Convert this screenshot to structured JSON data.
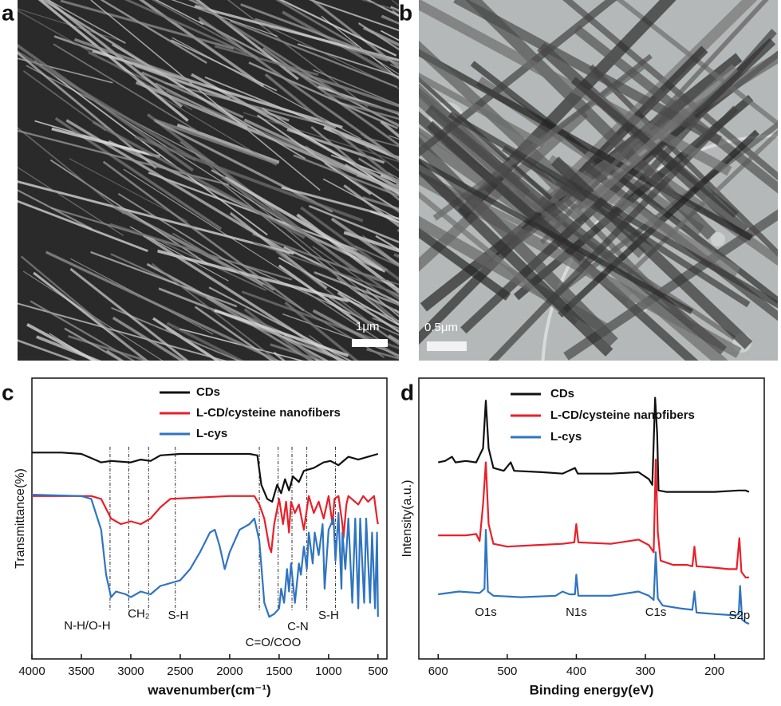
{
  "images": [
    {
      "label": "a",
      "scale_bar": "1μm"
    },
    {
      "label": "b",
      "scale_bar": "0.5μm"
    }
  ],
  "chart_data": [
    {
      "type": "line",
      "panel_label": "c",
      "x_label": "wavenumber(cm⁻¹)",
      "y_label": "Transmittance(%)",
      "xlim": [
        4000,
        410
      ],
      "xticks": [
        4000,
        3500,
        3000,
        2500,
        2000,
        1500,
        1000,
        500
      ],
      "ylim": [
        0,
        100
      ],
      "series": [
        {
          "name": "CDs",
          "color": "#111111",
          "x": [
            4000,
            3700,
            3500,
            3400,
            3300,
            3200,
            3000,
            2900,
            2800,
            2700,
            2500,
            2000,
            1800,
            1720,
            1680,
            1620,
            1570,
            1520,
            1480,
            1440,
            1400,
            1360,
            1300,
            1250,
            1150,
            1050,
            980,
            900,
            800,
            700,
            600,
            500
          ],
          "values": [
            73.5,
            73.5,
            73,
            71.5,
            70,
            70.5,
            70,
            71,
            70.5,
            72.5,
            73,
            73,
            73,
            72.5,
            62,
            57,
            56,
            62,
            59,
            64,
            60,
            65,
            63,
            67,
            68,
            70,
            70.5,
            69,
            72,
            71,
            72,
            73
          ]
        },
        {
          "name": "L-CD/cysteine nanofibers",
          "color": "#e8202a",
          "x": [
            4000,
            3400,
            3300,
            3200,
            3100,
            3000,
            2900,
            2800,
            2700,
            2600,
            2000,
            1750,
            1700,
            1650,
            1600,
            1580,
            1550,
            1500,
            1460,
            1430,
            1400,
            1380,
            1340,
            1300,
            1250,
            1200,
            1150,
            1100,
            1050,
            1000,
            960,
            940,
            900,
            860,
            850,
            820,
            800,
            700,
            650,
            600,
            540,
            510,
            500
          ],
          "values": [
            58,
            58,
            57,
            50,
            48,
            49,
            48,
            50,
            54,
            57,
            58,
            58,
            55,
            50,
            40,
            38,
            48,
            57,
            48,
            56,
            45,
            56,
            52,
            55,
            46,
            58,
            52,
            56,
            50,
            58,
            48,
            57,
            58,
            48,
            43,
            55,
            58,
            55,
            58,
            56,
            58,
            50,
            48
          ]
        },
        {
          "name": "L-cys",
          "color": "#2f74c0",
          "x": [
            4000,
            3500,
            3400,
            3300,
            3250,
            3200,
            3150,
            3050,
            3000,
            2900,
            2800,
            2700,
            2600,
            2500,
            2400,
            2300,
            2200,
            2150,
            2100,
            2050,
            2000,
            1900,
            1800,
            1750,
            1700,
            1650,
            1600,
            1550,
            1500,
            1480,
            1450,
            1420,
            1400,
            1380,
            1340,
            1300,
            1280,
            1250,
            1220,
            1200,
            1160,
            1140,
            1100,
            1060,
            1040,
            1000,
            950,
            930,
            900,
            870,
            860,
            830,
            800,
            760,
            730,
            700,
            680,
            640,
            620,
            580,
            560,
            530,
            510,
            500
          ],
          "values": [
            58.5,
            58,
            57,
            46,
            30,
            22,
            24,
            23,
            22,
            24,
            23,
            26,
            27,
            28,
            32,
            38,
            45,
            46,
            40,
            32,
            38,
            46,
            48,
            50,
            42,
            20,
            15,
            16,
            18,
            25,
            20,
            32,
            24,
            34,
            20,
            34,
            30,
            40,
            32,
            45,
            34,
            45,
            37,
            48,
            25,
            46,
            50,
            35,
            52,
            25,
            45,
            32,
            50,
            20,
            50,
            18,
            50,
            20,
            50,
            20,
            45,
            18,
            45,
            15
          ]
        }
      ],
      "marker_lines": [
        3210,
        3020,
        2820,
        2550,
        1700,
        1510,
        1370,
        1220,
        930
      ],
      "annotations": [
        {
          "text": "N-H/O-H",
          "x": 3440
        },
        {
          "text": "CH₂",
          "x": 2920
        },
        {
          "text": "S-H",
          "x": 2520
        },
        {
          "text": "C=O/COO",
          "x": 1560
        },
        {
          "text": "C-N",
          "x": 1310
        },
        {
          "text": "S-H",
          "x": 1000
        }
      ]
    },
    {
      "type": "line",
      "panel_label": "d",
      "x_label": "Binding energy(eV)",
      "y_label": "Intensity(a.u.)",
      "xlim": [
        628,
        128
      ],
      "xticks": [
        600,
        500,
        400,
        300,
        200
      ],
      "ylim": [
        0,
        100
      ],
      "series": [
        {
          "name": "CDs",
          "color": "#111111",
          "x": [
            600,
            590,
            580,
            575,
            560,
            545,
            535,
            531,
            527,
            520,
            505,
            495,
            490,
            450,
            420,
            402,
            398,
            350,
            310,
            295,
            290,
            286,
            283,
            281,
            270,
            230,
            200,
            165,
            155,
            150
          ],
          "values": [
            70,
            70.5,
            72,
            70,
            70.5,
            70,
            75,
            92,
            75,
            68,
            67,
            70,
            67,
            66.5,
            66,
            68,
            66,
            66,
            66.5,
            64,
            62,
            93,
            80,
            60,
            59.5,
            59.5,
            59.5,
            60,
            60,
            59.5
          ]
        },
        {
          "name": "L-CD/cysteine nanofibers",
          "color": "#e8202a",
          "x": [
            600,
            560,
            545,
            540,
            535,
            531,
            527,
            520,
            500,
            460,
            420,
            403,
            400,
            397,
            350,
            310,
            295,
            288,
            285,
            282,
            278,
            260,
            240,
            232,
            229,
            226,
            200,
            180,
            168,
            164,
            161,
            155,
            150
          ],
          "values": [
            44,
            44,
            44.5,
            42,
            55,
            70,
            48,
            41,
            40,
            40.5,
            41,
            41.5,
            48,
            41.5,
            41,
            42.5,
            40.5,
            38,
            71,
            45,
            35,
            33.5,
            33.5,
            33,
            40,
            33,
            32.5,
            32,
            32,
            43,
            31,
            29,
            29
          ]
        },
        {
          "name": "L-cys",
          "color": "#2f74c0",
          "x": [
            600,
            570,
            540,
            533,
            531,
            528,
            520,
            480,
            430,
            420,
            410,
            402,
            400,
            397,
            350,
            310,
            295,
            288,
            285,
            282,
            275,
            250,
            232,
            229,
            226,
            200,
            170,
            165,
            163,
            160,
            155,
            150
          ],
          "values": [
            23,
            24,
            23.5,
            25,
            46,
            24,
            22.5,
            22,
            22.5,
            24,
            23,
            23,
            30,
            22.5,
            22.5,
            24,
            22.5,
            21,
            38,
            21.5,
            19,
            18,
            17.5,
            24,
            16.5,
            16,
            15.5,
            16,
            26,
            14,
            13,
            12.5
          ]
        }
      ],
      "annotations": [
        {
          "text": "O1s",
          "x": 531
        },
        {
          "text": "N1s",
          "x": 400
        },
        {
          "text": "C1s",
          "x": 285
        },
        {
          "text": "S2p",
          "x": 164
        }
      ]
    }
  ]
}
